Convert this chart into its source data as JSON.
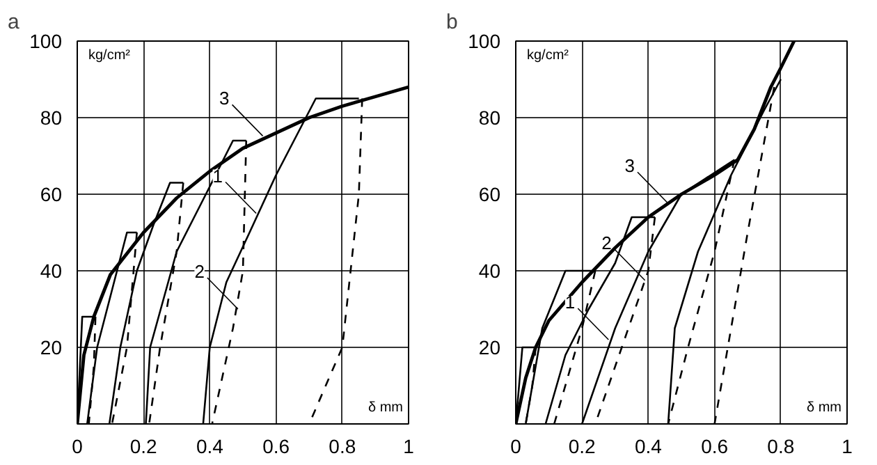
{
  "chart_data": [
    {
      "type": "line",
      "title": "a",
      "xlabel": "δ mm",
      "ylabel": "kg/cm²",
      "xlim": [
        0,
        1.0
      ],
      "ylim": [
        0,
        100
      ],
      "xticks": [
        0,
        0.2,
        0.4,
        0.6,
        0.8,
        1.0
      ],
      "yticks": [
        {
          "value": 0,
          "label": null
        },
        20,
        40,
        60,
        80,
        100
      ],
      "grid": true,
      "series": [
        {
          "color": "#000000",
          "line_style": "solid",
          "x": [
            0,
            0.015,
            0.055
          ],
          "values": [
            0,
            28,
            28
          ]
        },
        {
          "color": "#000000",
          "line_style": "solid",
          "x": [
            0.03,
            0.06,
            0.12,
            0.15,
            0.18
          ],
          "values": [
            0,
            20,
            40,
            50,
            50
          ]
        },
        {
          "color": "#000000",
          "line_style": "solid",
          "x": [
            0.097,
            0.13,
            0.18,
            0.23,
            0.28,
            0.32
          ],
          "values": [
            0,
            20,
            40,
            52,
            63,
            63
          ]
        },
        {
          "color": "#000000",
          "line_style": "solid",
          "x": [
            0.207,
            0.22,
            0.3,
            0.4,
            0.47,
            0.51
          ],
          "values": [
            0,
            20,
            45,
            62,
            74,
            74
          ]
        },
        {
          "color": "#000000",
          "line_style": "solid",
          "x": [
            0.38,
            0.4,
            0.45,
            0.52,
            0.6,
            0.72,
            0.85
          ],
          "values": [
            0,
            20,
            37,
            50,
            65,
            85,
            85
          ]
        },
        {
          "color": "#000000",
          "line_style": "dashed",
          "x": [
            0.055,
            0.05,
            0.035
          ],
          "values": [
            28,
            15,
            0
          ]
        },
        {
          "color": "#000000",
          "line_style": "dashed",
          "x": [
            0.18,
            0.17,
            0.15,
            0.105
          ],
          "values": [
            50,
            40,
            20,
            0
          ]
        },
        {
          "color": "#000000",
          "line_style": "dashed",
          "x": [
            0.32,
            0.3,
            0.25,
            0.217
          ],
          "values": [
            63,
            45,
            20,
            0
          ]
        },
        {
          "color": "#000000",
          "line_style": "dashed",
          "x": [
            0.51,
            0.5,
            0.47,
            0.407
          ],
          "values": [
            74,
            40,
            25,
            0
          ]
        },
        {
          "color": "#000000",
          "line_style": "dashed",
          "x": [
            0.86,
            0.85,
            0.8,
            0.7
          ],
          "values": [
            85,
            60,
            20,
            0
          ]
        },
        {
          "color": "#000000",
          "line_style": "solid",
          "x": [
            0,
            0.02,
            0.05,
            0.1,
            0.2,
            0.3,
            0.4,
            0.5,
            0.6,
            0.7,
            0.8,
            0.9,
            1.0
          ],
          "values": [
            0,
            18,
            28,
            39,
            50,
            59,
            66,
            72,
            76,
            80,
            83,
            85.5,
            88
          ]
        }
      ],
      "annotations": [
        {
          "text": "1",
          "x": 0.54,
          "y": 55
        },
        {
          "text": "2",
          "x": 0.485,
          "y": 30
        },
        {
          "text": "3",
          "x": 0.56,
          "y": 75.2
        }
      ]
    },
    {
      "type": "line",
      "title": "b",
      "xlabel": "δ mm",
      "ylabel": "kg/cm²",
      "xlim": [
        0,
        1.0
      ],
      "ylim": [
        0,
        100
      ],
      "xticks": [
        0,
        0.2,
        0.4,
        0.6,
        0.8,
        1.0
      ],
      "yticks": [
        {
          "value": 0,
          "label": null
        },
        20,
        40,
        60,
        80,
        100
      ],
      "grid": true,
      "series": [
        {
          "color": "#000000",
          "line_style": "solid",
          "x": [
            0,
            0.02,
            0.06
          ],
          "values": [
            0,
            20,
            20
          ]
        },
        {
          "color": "#000000",
          "line_style": "solid",
          "x": [
            0.03,
            0.08,
            0.15,
            0.24
          ],
          "values": [
            0,
            25,
            40,
            40
          ]
        },
        {
          "color": "#000000",
          "line_style": "solid",
          "x": [
            0.09,
            0.15,
            0.22,
            0.3,
            0.35,
            0.42
          ],
          "values": [
            0,
            18,
            30,
            42,
            54,
            54
          ]
        },
        {
          "color": "#000000",
          "line_style": "solid",
          "x": [
            0.2,
            0.3,
            0.4,
            0.5,
            0.66
          ],
          "values": [
            0,
            25,
            45,
            60,
            69
          ]
        },
        {
          "color": "#000000",
          "line_style": "solid",
          "x": [
            0.46,
            0.48,
            0.55,
            0.65,
            0.75,
            0.8
          ],
          "values": [
            0,
            25,
            45,
            65,
            82,
            90
          ]
        },
        {
          "color": "#000000",
          "line_style": "dashed",
          "x": [
            0.06,
            0.05,
            0.03
          ],
          "values": [
            20,
            10,
            0
          ]
        },
        {
          "color": "#000000",
          "line_style": "dashed",
          "x": [
            0.24,
            0.2,
            0.116
          ],
          "values": [
            40,
            25,
            0
          ]
        },
        {
          "color": "#000000",
          "line_style": "dashed",
          "x": [
            0.42,
            0.4,
            0.32,
            0.24
          ],
          "values": [
            54,
            40,
            20,
            0
          ]
        },
        {
          "color": "#000000",
          "line_style": "dashed",
          "x": [
            0.66,
            0.6,
            0.52,
            0.46
          ],
          "values": [
            69,
            45,
            20,
            0
          ]
        },
        {
          "color": "#000000",
          "line_style": "dashed",
          "x": [
            0.78,
            0.7,
            0.65,
            0.6
          ],
          "values": [
            88,
            50,
            25,
            0
          ]
        },
        {
          "color": "#000000",
          "line_style": "solid",
          "x": [
            0,
            0.03,
            0.06,
            0.1,
            0.2,
            0.3,
            0.4,
            0.5,
            0.6,
            0.67,
            0.72,
            0.77,
            0.8,
            0.84
          ],
          "values": [
            0,
            12,
            20,
            27,
            37,
            46,
            54,
            60,
            65,
            69,
            77,
            88,
            93,
            100
          ]
        }
      ],
      "annotations": [
        {
          "text": "1",
          "x": 0.28,
          "y": 22
        },
        {
          "text": "2",
          "x": 0.39,
          "y": 37.5
        },
        {
          "text": "3",
          "x": 0.46,
          "y": 57.6
        }
      ]
    }
  ]
}
